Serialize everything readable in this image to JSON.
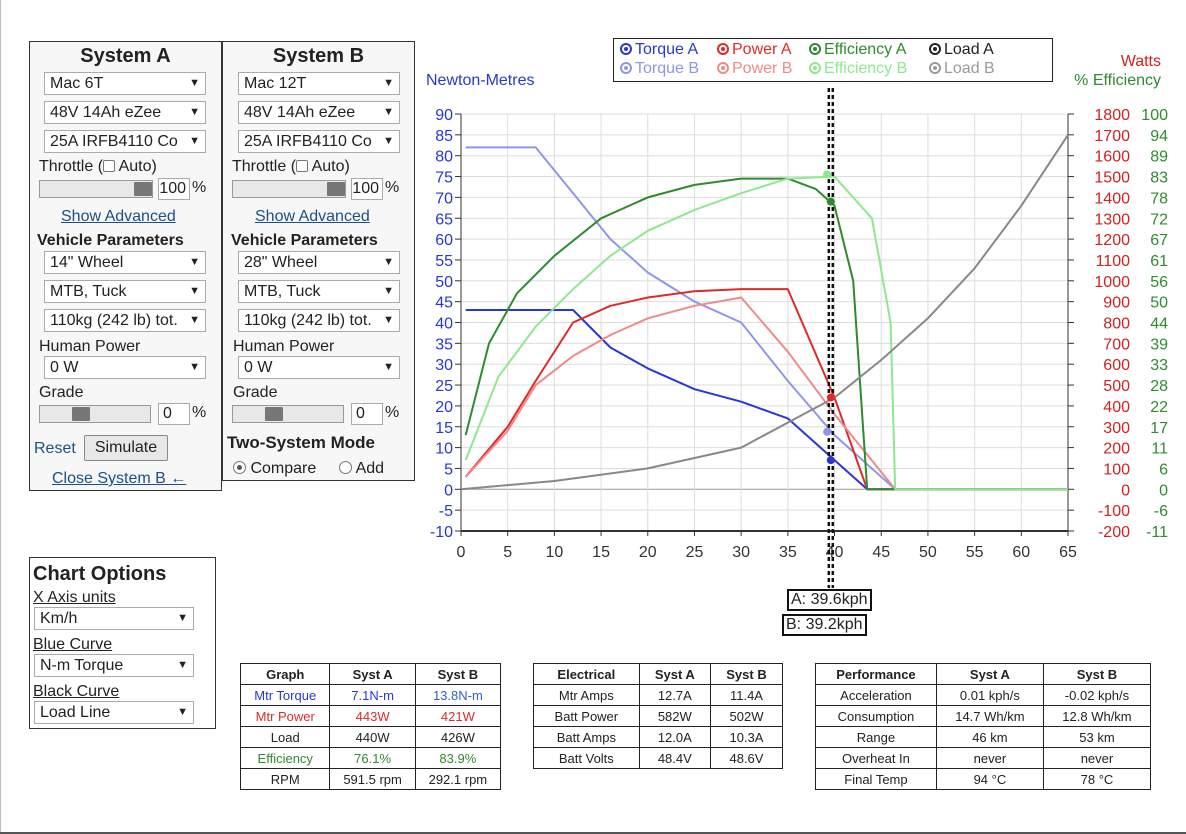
{
  "system_a": {
    "title": "System A",
    "motor": "Mac 6T",
    "battery": "48V 14Ah eZee",
    "controller": "25A IRFB4110 Co",
    "throttle_label": "Throttle (",
    "auto_label": "Auto)",
    "throttle_value": "100",
    "percent": "%",
    "show_advanced": "Show Advanced",
    "vehicle_params_title": "Vehicle Parameters",
    "wheel": "14\"  Wheel",
    "position": "MTB, Tuck",
    "weight": "110kg (242 lb) tot.",
    "human_power_label": "Human Power",
    "human_power": "0 W",
    "grade_label": "Grade",
    "grade_value": "0",
    "reset": "Reset",
    "simulate": "Simulate",
    "close_b": "Close System B ←"
  },
  "system_b": {
    "title": "System B",
    "motor": "Mac 12T",
    "battery": "48V 14Ah eZee",
    "controller": "25A IRFB4110 Co",
    "throttle_label": "Throttle (",
    "auto_label": "Auto)",
    "throttle_value": "100",
    "percent": "%",
    "show_advanced": "Show Advanced",
    "vehicle_params_title": "Vehicle Parameters",
    "wheel": "28\"  Wheel",
    "position": "MTB, Tuck",
    "weight": "110kg (242 lb) tot.",
    "human_power_label": "Human Power",
    "human_power": "0 W",
    "grade_label": "Grade",
    "grade_value": "0",
    "two_system_title": "Two-System Mode",
    "compare": "Compare",
    "add": "Add"
  },
  "chart_options": {
    "title": "Chart Options",
    "x_axis_label": "X Axis units",
    "x_axis_value": "Km/h",
    "blue_label": "Blue Curve",
    "blue_value": "N-m Torque",
    "black_label": "Black Curve",
    "black_value": "Load Line"
  },
  "legend": {
    "torque_a": "Torque A",
    "power_a": "Power A",
    "eff_a": "Efficiency A",
    "load_a": "Load A",
    "torque_b": "Torque B",
    "power_b": "Power B",
    "eff_b": "Efficiency B",
    "load_b": "Load B"
  },
  "colors": {
    "torque_a": "#2a36d6",
    "torque_b": "#8f96e8",
    "power_a": "#e02a2a",
    "power_b": "#f08a8a",
    "eff_a": "#2e8b2e",
    "eff_b": "#8ee88e",
    "load": "#888888"
  },
  "readouts": {
    "a": "A: 39.6kph",
    "b": "B: 39.2kph"
  },
  "chart_data": {
    "type": "line",
    "y_left_label": "Newton-Metres",
    "y_right_label_1": "Watts",
    "y_right_label_2": "% Efficiency",
    "xlim": [
      0,
      65
    ],
    "ylim": [
      -10,
      90
    ],
    "x_ticks": [
      "0",
      "5",
      "10",
      "15",
      "20",
      "25",
      "30",
      "35",
      "40",
      "45",
      "50",
      "55",
      "60",
      "65"
    ],
    "y_ticks": [
      "-10",
      "-5",
      "0",
      "5",
      "10",
      "15",
      "20",
      "25",
      "30",
      "35",
      "40",
      "45",
      "50",
      "55",
      "60",
      "65",
      "70",
      "75",
      "80",
      "85",
      "90"
    ],
    "watts_ticks": [
      "-200",
      "-100",
      "0",
      "100",
      "200",
      "300",
      "400",
      "500",
      "600",
      "700",
      "800",
      "900",
      "1000",
      "1100",
      "1200",
      "1300",
      "1400",
      "1500",
      "1600",
      "1700",
      "1800"
    ],
    "eff_ticks": [
      "-11",
      "-6",
      "0",
      "6",
      "11",
      "17",
      "22",
      "28",
      "33",
      "39",
      "44",
      "50",
      "56",
      "61",
      "67",
      "72",
      "78",
      "83",
      "89",
      "94",
      "100"
    ],
    "cursor_x": 39.6,
    "series": [
      {
        "name": "Torque A",
        "key": "torque_a",
        "x": [
          0.5,
          5,
          10,
          12,
          16,
          20,
          25,
          30,
          35,
          40,
          43.5,
          50,
          65
        ],
        "y": [
          43,
          43,
          43,
          43,
          34,
          29,
          24,
          21,
          17,
          7,
          0,
          0,
          0
        ]
      },
      {
        "name": "Torque B",
        "key": "torque_b",
        "x": [
          0.5,
          5,
          8,
          12,
          16,
          20,
          25,
          30,
          35,
          40,
          46.5,
          50,
          65
        ],
        "y": [
          82,
          82,
          82,
          71,
          60,
          52,
          45,
          40,
          26,
          13,
          0,
          0,
          0
        ]
      },
      {
        "name": "Power A",
        "key": "power_a",
        "x": [
          0.5,
          5,
          8,
          12,
          16,
          20,
          25,
          30,
          35,
          40,
          43.5,
          65
        ],
        "y": [
          3,
          15,
          26,
          40,
          44,
          46,
          47.5,
          48,
          48,
          22,
          0,
          0
        ]
      },
      {
        "name": "Power B",
        "key": "power_b",
        "x": [
          0.5,
          5,
          8,
          12,
          16,
          20,
          25,
          30,
          35,
          40,
          46.5,
          65
        ],
        "y": [
          3,
          14,
          25,
          32,
          37,
          41,
          44,
          46,
          33,
          18,
          0,
          0
        ]
      },
      {
        "name": "Efficiency A",
        "key": "eff_a",
        "x": [
          0.5,
          3,
          6,
          10,
          15,
          20,
          25,
          30,
          35,
          38,
          40,
          42,
          43.5,
          65
        ],
        "y": [
          13,
          35,
          47,
          56,
          65,
          70,
          73,
          74.5,
          74.5,
          72,
          68,
          50,
          0,
          0
        ]
      },
      {
        "name": "Efficiency B",
        "key": "eff_b",
        "x": [
          0.5,
          4,
          8,
          12,
          16,
          20,
          25,
          30,
          35,
          40,
          44,
          46,
          46.5,
          65
        ],
        "y": [
          7,
          27,
          39,
          48,
          56,
          62,
          67,
          71,
          74.5,
          75,
          65,
          40,
          0,
          0
        ]
      },
      {
        "name": "Load A",
        "key": "load",
        "x": [
          0,
          10,
          20,
          30,
          35,
          40,
          45,
          50,
          55,
          60,
          65
        ],
        "y": [
          0,
          2,
          5,
          10,
          16,
          22,
          31,
          41,
          53,
          68,
          85
        ]
      }
    ],
    "markers": [
      {
        "key": "power_a",
        "x": 39.6,
        "y": 22
      },
      {
        "key": "eff_a",
        "x": 39.6,
        "y": 69
      },
      {
        "key": "eff_b",
        "x": 39.2,
        "y": 75.5
      },
      {
        "key": "torque_a",
        "x": 39.6,
        "y": 7
      },
      {
        "key": "torque_b",
        "x": 39.2,
        "y": 13.8
      }
    ]
  },
  "graph_table": {
    "headers": [
      "Graph",
      "Syst A",
      "Syst B"
    ],
    "rows": [
      [
        "Mtr Torque",
        "7.1N-m",
        "13.8N-m"
      ],
      [
        "Mtr Power",
        "443W",
        "421W"
      ],
      [
        "Load",
        "440W",
        "426W"
      ],
      [
        "Efficiency",
        "76.1%",
        "83.9%"
      ],
      [
        "RPM",
        "591.5 rpm",
        "292.1 rpm"
      ]
    ]
  },
  "electrical_table": {
    "headers": [
      "Electrical",
      "Syst A",
      "Syst B"
    ],
    "rows": [
      [
        "Mtr Amps",
        "12.7A",
        "11.4A"
      ],
      [
        "Batt Power",
        "582W",
        "502W"
      ],
      [
        "Batt Amps",
        "12.0A",
        "10.3A"
      ],
      [
        "Batt Volts",
        "48.4V",
        "48.6V"
      ]
    ]
  },
  "performance_table": {
    "headers": [
      "Performance",
      "Syst A",
      "Syst B"
    ],
    "rows": [
      [
        "Acceleration",
        "0.01 kph/s",
        "-0.02 kph/s"
      ],
      [
        "Consumption",
        "14.7 Wh/km",
        "12.8 Wh/km"
      ],
      [
        "Range",
        "46 km",
        "53 km"
      ],
      [
        "Overheat In",
        "never",
        "never"
      ],
      [
        "Final Temp",
        "94 °C",
        "78 °C"
      ]
    ]
  }
}
